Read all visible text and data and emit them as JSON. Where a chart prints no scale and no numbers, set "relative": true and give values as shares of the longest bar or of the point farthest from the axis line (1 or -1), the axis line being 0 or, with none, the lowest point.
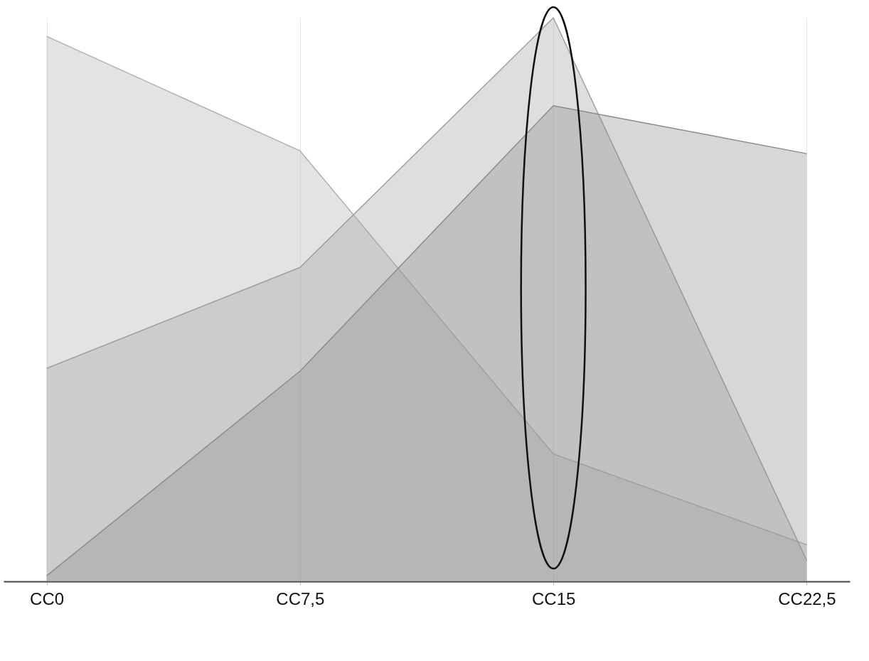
{
  "chart_data": {
    "type": "area",
    "relative": true,
    "grid": "x",
    "categories": [
      "CC0",
      "CC7,5",
      "CC15",
      "CC22,5"
    ],
    "series": [
      {
        "color": "#b0b0b0",
        "values": [
          0.967,
          0.764,
          0.226,
          0.065
        ]
      },
      {
        "color": "#a0a0a0",
        "values": [
          0.378,
          0.557,
          1,
          0.037
        ]
      },
      {
        "color": "#8c8c8c",
        "values": [
          0.01,
          0.373,
          0.844,
          0.759
        ]
      }
    ]
  }
}
